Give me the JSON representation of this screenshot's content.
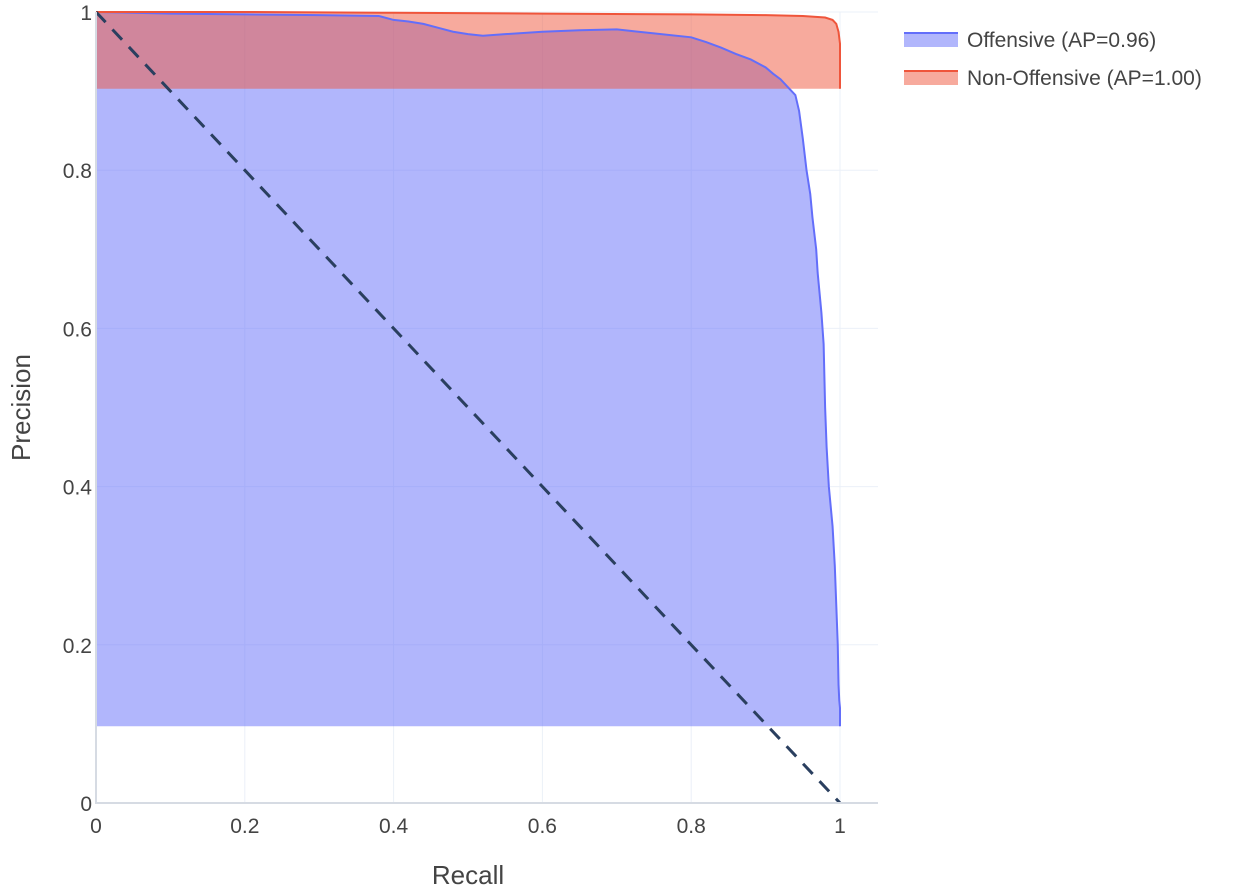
{
  "chart_data": {
    "type": "area",
    "title": "",
    "xlabel": "Recall",
    "ylabel": "Precision",
    "xlim": [
      0,
      1
    ],
    "ylim": [
      0,
      1
    ],
    "x_ticks": [
      {
        "value": 0,
        "label": "0"
      },
      {
        "value": 0.2,
        "label": "0.2"
      },
      {
        "value": 0.4,
        "label": "0.4"
      },
      {
        "value": 0.6,
        "label": "0.6"
      },
      {
        "value": 0.8,
        "label": "0.8"
      },
      {
        "value": 1,
        "label": "1"
      }
    ],
    "y_ticks": [
      {
        "value": 0,
        "label": "0"
      },
      {
        "value": 0.2,
        "label": "0.2"
      },
      {
        "value": 0.4,
        "label": "0.4"
      },
      {
        "value": 0.6,
        "label": "0.6"
      },
      {
        "value": 0.8,
        "label": "0.8"
      },
      {
        "value": 1,
        "label": "1"
      }
    ],
    "grid": true,
    "legend_position": "top-right-outside",
    "series": [
      {
        "name": "Offensive (AP=0.96)",
        "line_color": "#636efa",
        "fill_color": "#636efa",
        "fill_base": 0.097,
        "points": [
          [
            0,
            1.0
          ],
          [
            0.1,
            0.998
          ],
          [
            0.2,
            0.997
          ],
          [
            0.3,
            0.996
          ],
          [
            0.38,
            0.995
          ],
          [
            0.4,
            0.99
          ],
          [
            0.42,
            0.988
          ],
          [
            0.44,
            0.985
          ],
          [
            0.46,
            0.98
          ],
          [
            0.48,
            0.975
          ],
          [
            0.5,
            0.972
          ],
          [
            0.52,
            0.97
          ],
          [
            0.55,
            0.972
          ],
          [
            0.6,
            0.975
          ],
          [
            0.65,
            0.977
          ],
          [
            0.7,
            0.978
          ],
          [
            0.72,
            0.976
          ],
          [
            0.75,
            0.973
          ],
          [
            0.8,
            0.968
          ],
          [
            0.82,
            0.962
          ],
          [
            0.84,
            0.955
          ],
          [
            0.86,
            0.947
          ],
          [
            0.88,
            0.94
          ],
          [
            0.9,
            0.93
          ],
          [
            0.91,
            0.922
          ],
          [
            0.92,
            0.915
          ],
          [
            0.93,
            0.905
          ],
          [
            0.94,
            0.895
          ],
          [
            0.945,
            0.875
          ],
          [
            0.95,
            0.84
          ],
          [
            0.955,
            0.8
          ],
          [
            0.96,
            0.77
          ],
          [
            0.963,
            0.74
          ],
          [
            0.968,
            0.7
          ],
          [
            0.97,
            0.67
          ],
          [
            0.975,
            0.62
          ],
          [
            0.978,
            0.58
          ],
          [
            0.98,
            0.5
          ],
          [
            0.982,
            0.45
          ],
          [
            0.985,
            0.4
          ],
          [
            0.99,
            0.35
          ],
          [
            0.993,
            0.3
          ],
          [
            0.995,
            0.25
          ],
          [
            0.997,
            0.2
          ],
          [
            0.998,
            0.15
          ],
          [
            0.999,
            0.13
          ],
          [
            1.0,
            0.12
          ],
          [
            1.0,
            0.097
          ]
        ]
      },
      {
        "name": "Non-Offensive (AP=1.00)",
        "line_color": "#ef553b",
        "fill_color": "#ef553b",
        "fill_base": 0.903,
        "points": [
          [
            0,
            1.0
          ],
          [
            0.2,
            1.0
          ],
          [
            0.4,
            0.999
          ],
          [
            0.6,
            0.998
          ],
          [
            0.8,
            0.997
          ],
          [
            0.9,
            0.996
          ],
          [
            0.95,
            0.995
          ],
          [
            0.98,
            0.993
          ],
          [
            0.99,
            0.99
          ],
          [
            0.995,
            0.985
          ],
          [
            0.998,
            0.975
          ],
          [
            1.0,
            0.96
          ],
          [
            1.0,
            0.903
          ]
        ]
      }
    ],
    "reference_line": {
      "points": [
        [
          0,
          1
        ],
        [
          1,
          0
        ]
      ],
      "color": "#2a3f5f",
      "dash": true
    }
  }
}
